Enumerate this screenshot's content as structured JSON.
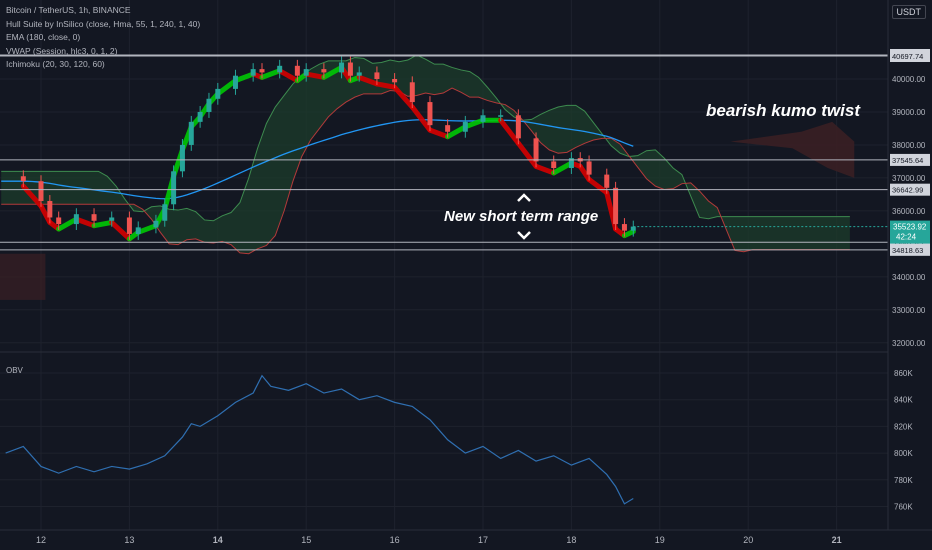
{
  "header": {
    "symbol": "Bitcoin / TetherUS, 1h, BINANCE",
    "indicators": [
      "Hull Suite by InSilico (close, Hma, 55, 1, 240, 1, 40)",
      "EMA (180, close, 0)",
      "VWAP (Session, hlc3, 0, 1, 2)",
      "Ichimoku (20, 30, 120, 60)"
    ],
    "currency": "USDT"
  },
  "annotations": {
    "kumo_twist": "bearish kumo twist",
    "range": "New short term range"
  },
  "obv_label": "OBV",
  "colors": {
    "background": "#131722",
    "up": "#26a69a",
    "down": "#ef5350",
    "hull_bull": "#00c805",
    "hull_bear": "#d50000",
    "ema": "#2196f3",
    "kumo_bull": "#1b3a2b",
    "kumo_bear": "#3a1f24",
    "level": "#b2b5be",
    "current_price": "#26a69a",
    "obv": "#2f6fb1"
  },
  "price_axis": {
    "ticks": [
      "40000.00",
      "39000.00",
      "38000.00",
      "37000.00",
      "36000.00",
      "34000.00",
      "33000.00",
      "32000.00"
    ],
    "level_labels": [
      "40728.00",
      "40697.74",
      "37545.64",
      "36642.99",
      "35047.49",
      "34818.63"
    ],
    "current_price": "35523.92",
    "countdown": "42:24"
  },
  "obv_axis": {
    "ticks": [
      "860K",
      "840K",
      "820K",
      "800K",
      "780K",
      "760K"
    ]
  },
  "time_axis": [
    "12",
    "13",
    "14",
    "15",
    "16",
    "17",
    "18",
    "19",
    "20",
    "21"
  ],
  "chart_data": [
    {
      "type": "candlestick",
      "title": "Bitcoin / TetherUS, 1h, BINANCE",
      "ylim": [
        31800,
        41300
      ],
      "x": [
        11.8,
        12.0,
        12.1,
        12.2,
        12.4,
        12.6,
        12.8,
        13.0,
        13.1,
        13.3,
        13.4,
        13.5,
        13.6,
        13.7,
        13.8,
        13.9,
        14.0,
        14.2,
        14.4,
        14.5,
        14.7,
        14.9,
        15.0,
        15.2,
        15.4,
        15.5,
        15.6,
        15.8,
        16.0,
        16.2,
        16.4,
        16.6,
        16.8,
        17.0,
        17.2,
        17.4,
        17.6,
        17.8,
        18.0,
        18.1,
        18.2,
        18.4,
        18.5,
        18.6,
        18.7
      ],
      "close": [
        36900,
        36300,
        35800,
        35600,
        35900,
        35700,
        35800,
        35300,
        35500,
        35700,
        36200,
        37200,
        38000,
        38700,
        39000,
        39400,
        39700,
        40100,
        40300,
        40200,
        40400,
        40100,
        40300,
        40200,
        40500,
        40100,
        40200,
        40000,
        39900,
        39300,
        38600,
        38400,
        38700,
        38900,
        38900,
        38200,
        37500,
        37300,
        37600,
        37500,
        37100,
        36700,
        35600,
        35400,
        35523.92
      ],
      "levels": [
        40728.0,
        40697.74,
        37545.64,
        36642.99,
        35047.49,
        34818.63
      ],
      "annotations": [
        "bearish kumo twist",
        "New short term range"
      ]
    },
    {
      "type": "line",
      "title": "OBV",
      "ylim": [
        750,
        870
      ],
      "x": [
        11.6,
        11.8,
        12.0,
        12.2,
        12.4,
        12.6,
        12.8,
        13.0,
        13.2,
        13.4,
        13.6,
        13.7,
        13.8,
        14.0,
        14.2,
        14.4,
        14.5,
        14.6,
        14.8,
        15.0,
        15.2,
        15.4,
        15.6,
        15.8,
        16.0,
        16.2,
        16.4,
        16.6,
        16.8,
        17.0,
        17.2,
        17.4,
        17.6,
        17.8,
        18.0,
        18.2,
        18.4,
        18.5,
        18.6,
        18.7
      ],
      "series": [
        {
          "name": "OBV",
          "values": [
            800,
            805,
            790,
            785,
            790,
            786,
            790,
            788,
            792,
            798,
            812,
            822,
            820,
            828,
            838,
            845,
            858,
            850,
            847,
            852,
            845,
            848,
            840,
            843,
            838,
            835,
            825,
            810,
            800,
            805,
            796,
            802,
            794,
            798,
            791,
            796,
            784,
            775,
            762,
            766
          ]
        }
      ]
    }
  ]
}
